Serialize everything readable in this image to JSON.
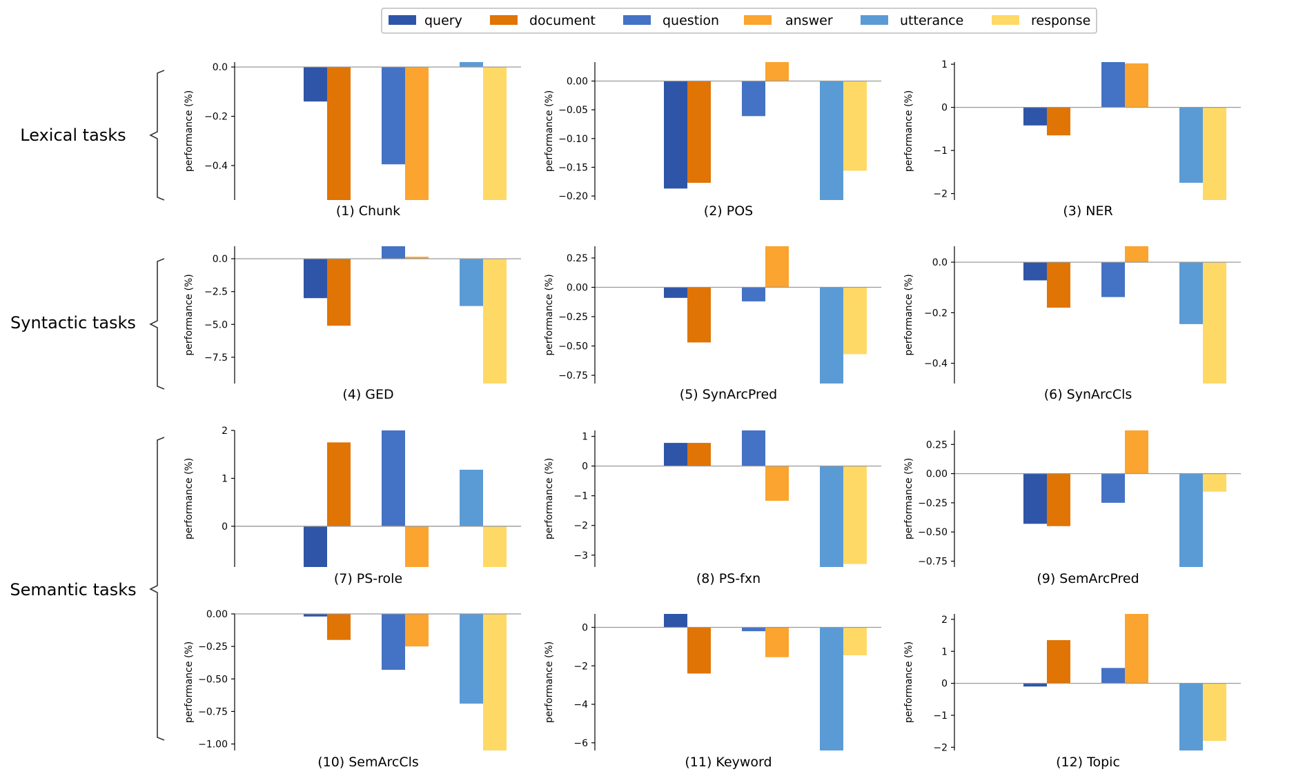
{
  "colors": {
    "query": "#2e55a7",
    "document": "#e07405",
    "question": "#4472c4",
    "answer": "#fba42f",
    "utterance": "#5b9bd5",
    "response": "#ffd966",
    "axis": "#000000",
    "zero_line": "#999999",
    "bracket": "#333333"
  },
  "legend": [
    {
      "key": "query",
      "label": "query"
    },
    {
      "key": "document",
      "label": "document"
    },
    {
      "key": "question",
      "label": "question"
    },
    {
      "key": "answer",
      "label": "answer"
    },
    {
      "key": "utterance",
      "label": "utterance"
    },
    {
      "key": "response",
      "label": "response"
    }
  ],
  "groups": [
    {
      "label": "Lexical tasks"
    },
    {
      "label": "Syntactic tasks"
    },
    {
      "label": "Semantic tasks"
    }
  ],
  "ylabel": "performance (%)",
  "chart_data": [
    {
      "type": "bar",
      "title": "(1) Chunk",
      "ylabel": "performance (%)",
      "ylim": [
        -0.54,
        0.02
      ],
      "ticks": [
        0.0,
        -0.2,
        -0.4
      ],
      "tick_labels": [
        "0.0",
        "−0.2",
        "−0.4"
      ],
      "series": [
        {
          "name": "query",
          "value": -0.14
        },
        {
          "name": "document",
          "value": -0.54
        },
        {
          "name": "question",
          "value": -0.395
        },
        {
          "name": "answer",
          "value": -0.54
        },
        {
          "name": "utterance",
          "value": 0.02
        },
        {
          "name": "response",
          "value": -0.54
        }
      ]
    },
    {
      "type": "bar",
      "title": "(2) POS",
      "ylabel": "performance (%)",
      "ylim": [
        -0.207,
        0.033
      ],
      "ticks": [
        0.0,
        -0.05,
        -0.1,
        -0.15,
        -0.2
      ],
      "tick_labels": [
        "0.00",
        "−0.05",
        "−0.10",
        "−0.15",
        "−0.20"
      ],
      "series": [
        {
          "name": "query",
          "value": -0.187
        },
        {
          "name": "document",
          "value": -0.177
        },
        {
          "name": "question",
          "value": -0.061
        },
        {
          "name": "answer",
          "value": 0.033
        },
        {
          "name": "utterance",
          "value": -0.207
        },
        {
          "name": "response",
          "value": -0.156
        }
      ]
    },
    {
      "type": "bar",
      "title": "(3) NER",
      "ylabel": "performance (%)",
      "ylim": [
        -2.15,
        1.05
      ],
      "ticks": [
        1,
        0,
        -1,
        -2
      ],
      "tick_labels": [
        "1",
        "0",
        "−1",
        "−2"
      ],
      "series": [
        {
          "name": "query",
          "value": -0.42
        },
        {
          "name": "document",
          "value": -0.65
        },
        {
          "name": "question",
          "value": 1.05
        },
        {
          "name": "answer",
          "value": 1.02
        },
        {
          "name": "utterance",
          "value": -1.75
        },
        {
          "name": "response",
          "value": -2.15
        }
      ]
    },
    {
      "type": "bar",
      "title": "(4) GED",
      "ylabel": "performance (%)",
      "ylim": [
        -9.5,
        0.95
      ],
      "ticks": [
        0.0,
        -2.5,
        -5.0,
        -7.5
      ],
      "tick_labels": [
        "0.0",
        "−2.5",
        "−5.0",
        "−7.5"
      ],
      "series": [
        {
          "name": "query",
          "value": -3.0
        },
        {
          "name": "document",
          "value": -5.1
        },
        {
          "name": "question",
          "value": 0.95
        },
        {
          "name": "answer",
          "value": 0.15
        },
        {
          "name": "utterance",
          "value": -3.6
        },
        {
          "name": "response",
          "value": -9.5
        }
      ]
    },
    {
      "type": "bar",
      "title": "(5) SynArcPred",
      "ylabel": "performance (%)",
      "ylim": [
        -0.82,
        0.35
      ],
      "ticks": [
        0.25,
        0.0,
        -0.25,
        -0.5,
        -0.75
      ],
      "tick_labels": [
        "0.25",
        "0.00",
        "−0.25",
        "−0.50",
        "−0.75"
      ],
      "series": [
        {
          "name": "query",
          "value": -0.09
        },
        {
          "name": "document",
          "value": -0.47
        },
        {
          "name": "question",
          "value": -0.12
        },
        {
          "name": "answer",
          "value": 0.35
        },
        {
          "name": "utterance",
          "value": -0.82
        },
        {
          "name": "response",
          "value": -0.57
        }
      ]
    },
    {
      "type": "bar",
      "title": "(6) SynArcCls",
      "ylabel": "performance (%)",
      "ylim": [
        -0.48,
        0.063
      ],
      "ticks": [
        0.0,
        -0.2,
        -0.4
      ],
      "tick_labels": [
        "0.0",
        "−0.2",
        "−0.4"
      ],
      "series": [
        {
          "name": "query",
          "value": -0.072
        },
        {
          "name": "document",
          "value": -0.18
        },
        {
          "name": "question",
          "value": -0.138
        },
        {
          "name": "answer",
          "value": 0.063
        },
        {
          "name": "utterance",
          "value": -0.245
        },
        {
          "name": "response",
          "value": -0.48
        }
      ]
    },
    {
      "type": "bar",
      "title": "(7) PS-role",
      "ylabel": "performance (%)",
      "ylim": [
        -0.85,
        2.0
      ],
      "ticks": [
        2,
        1,
        0
      ],
      "tick_labels": [
        "2",
        "1",
        "0"
      ],
      "series": [
        {
          "name": "query",
          "value": -0.85
        },
        {
          "name": "document",
          "value": 1.75
        },
        {
          "name": "question",
          "value": 2.0
        },
        {
          "name": "answer",
          "value": -0.85
        },
        {
          "name": "utterance",
          "value": 1.18
        },
        {
          "name": "response",
          "value": -0.85
        }
      ]
    },
    {
      "type": "bar",
      "title": "(8) PS-fxn",
      "ylabel": "performance (%)",
      "ylim": [
        -3.4,
        1.2
      ],
      "ticks": [
        1,
        0,
        -1,
        -2,
        -3
      ],
      "tick_labels": [
        "1",
        "0",
        "−1",
        "−2",
        "−3"
      ],
      "series": [
        {
          "name": "query",
          "value": 0.78
        },
        {
          "name": "document",
          "value": 0.78
        },
        {
          "name": "question",
          "value": 1.2
        },
        {
          "name": "answer",
          "value": -1.17
        },
        {
          "name": "utterance",
          "value": -3.4
        },
        {
          "name": "response",
          "value": -3.3
        }
      ]
    },
    {
      "type": "bar",
      "title": "(9) SemArcPred",
      "ylabel": "performance (%)",
      "ylim": [
        -0.8,
        0.37
      ],
      "ticks": [
        0.25,
        0.0,
        -0.25,
        -0.5,
        -0.75
      ],
      "tick_labels": [
        "0.25",
        "0.00",
        "−0.25",
        "−0.50",
        "−0.75"
      ],
      "series": [
        {
          "name": "query",
          "value": -0.43
        },
        {
          "name": "document",
          "value": -0.45
        },
        {
          "name": "question",
          "value": -0.25
        },
        {
          "name": "answer",
          "value": 0.37
        },
        {
          "name": "utterance",
          "value": -0.8
        },
        {
          "name": "response",
          "value": -0.155
        }
      ]
    },
    {
      "type": "bar",
      "title": "(10) SemArcCls",
      "ylabel": "performance (%)",
      "ylim": [
        -1.05,
        0.0
      ],
      "ticks": [
        0.0,
        -0.25,
        -0.5,
        -0.75,
        -1.0
      ],
      "tick_labels": [
        "0.00",
        "−0.25",
        "−0.50",
        "−0.75",
        "−1.00"
      ],
      "series": [
        {
          "name": "query",
          "value": -0.02
        },
        {
          "name": "document",
          "value": -0.2
        },
        {
          "name": "question",
          "value": -0.43
        },
        {
          "name": "answer",
          "value": -0.25
        },
        {
          "name": "utterance",
          "value": -0.69
        },
        {
          "name": "response",
          "value": -1.05
        }
      ]
    },
    {
      "type": "bar",
      "title": "(11) Keyword",
      "ylabel": "performance (%)",
      "ylim": [
        -6.4,
        0.7
      ],
      "ticks": [
        0,
        -2,
        -4,
        -6
      ],
      "tick_labels": [
        "0",
        "−2",
        "−4",
        "−6"
      ],
      "series": [
        {
          "name": "query",
          "value": 0.7
        },
        {
          "name": "document",
          "value": -2.4
        },
        {
          "name": "question",
          "value": -0.2
        },
        {
          "name": "answer",
          "value": -1.55
        },
        {
          "name": "utterance",
          "value": -6.4
        },
        {
          "name": "response",
          "value": -1.45
        }
      ]
    },
    {
      "type": "bar",
      "title": "(12) Topic",
      "ylabel": "performance (%)",
      "ylim": [
        -2.1,
        2.17
      ],
      "ticks": [
        2,
        1,
        0,
        -1,
        -2
      ],
      "tick_labels": [
        "2",
        "1",
        "0",
        "−1",
        "−2"
      ],
      "series": [
        {
          "name": "query",
          "value": -0.1
        },
        {
          "name": "document",
          "value": 1.35
        },
        {
          "name": "question",
          "value": 0.48
        },
        {
          "name": "answer",
          "value": 2.17
        },
        {
          "name": "utterance",
          "value": -2.1
        },
        {
          "name": "response",
          "value": -1.8
        }
      ]
    }
  ]
}
